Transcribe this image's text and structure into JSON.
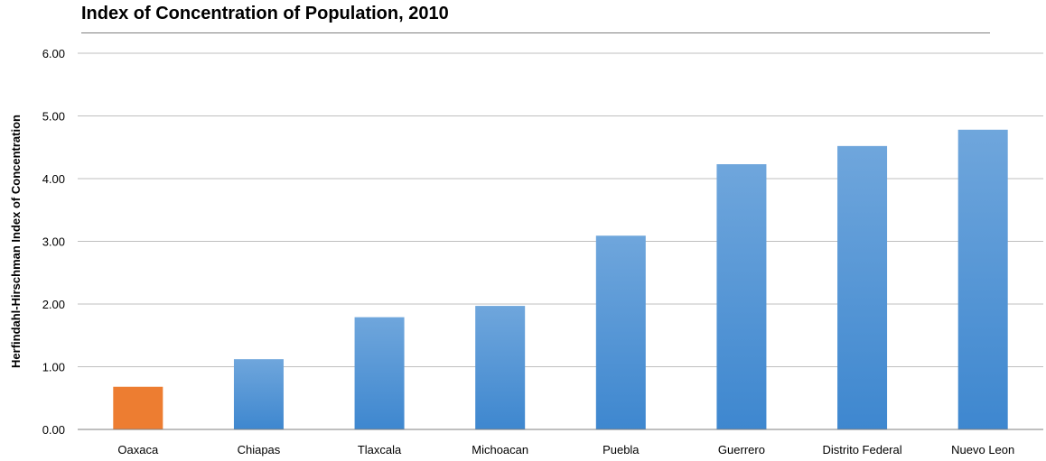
{
  "chart_data": {
    "type": "bar",
    "title": "Index of Concentration of Population, 2010",
    "xlabel": "",
    "ylabel": "Herfindahl-Hirschman Index of Concentration",
    "ylim": [
      0,
      6
    ],
    "yticks": [
      "0.00",
      "1.00",
      "2.00",
      "3.00",
      "4.00",
      "5.00",
      "6.00"
    ],
    "grid": true,
    "legend": "none",
    "categories": [
      "Oaxaca",
      "Chiapas",
      "Tlaxcala",
      "Michoacan",
      "Puebla",
      "Guerrero",
      "Distrito Federal",
      "Nuevo Leon"
    ],
    "values": [
      0.68,
      1.12,
      1.79,
      1.97,
      3.09,
      4.23,
      4.52,
      4.78
    ],
    "highlight_category": "Oaxaca",
    "colors": {
      "highlight": "#ED7D31",
      "bar_top": "#6FA6DC",
      "bar_bottom": "#3E87CF",
      "grid": "#BFBFBF",
      "axis": "#7F7F7F"
    }
  }
}
